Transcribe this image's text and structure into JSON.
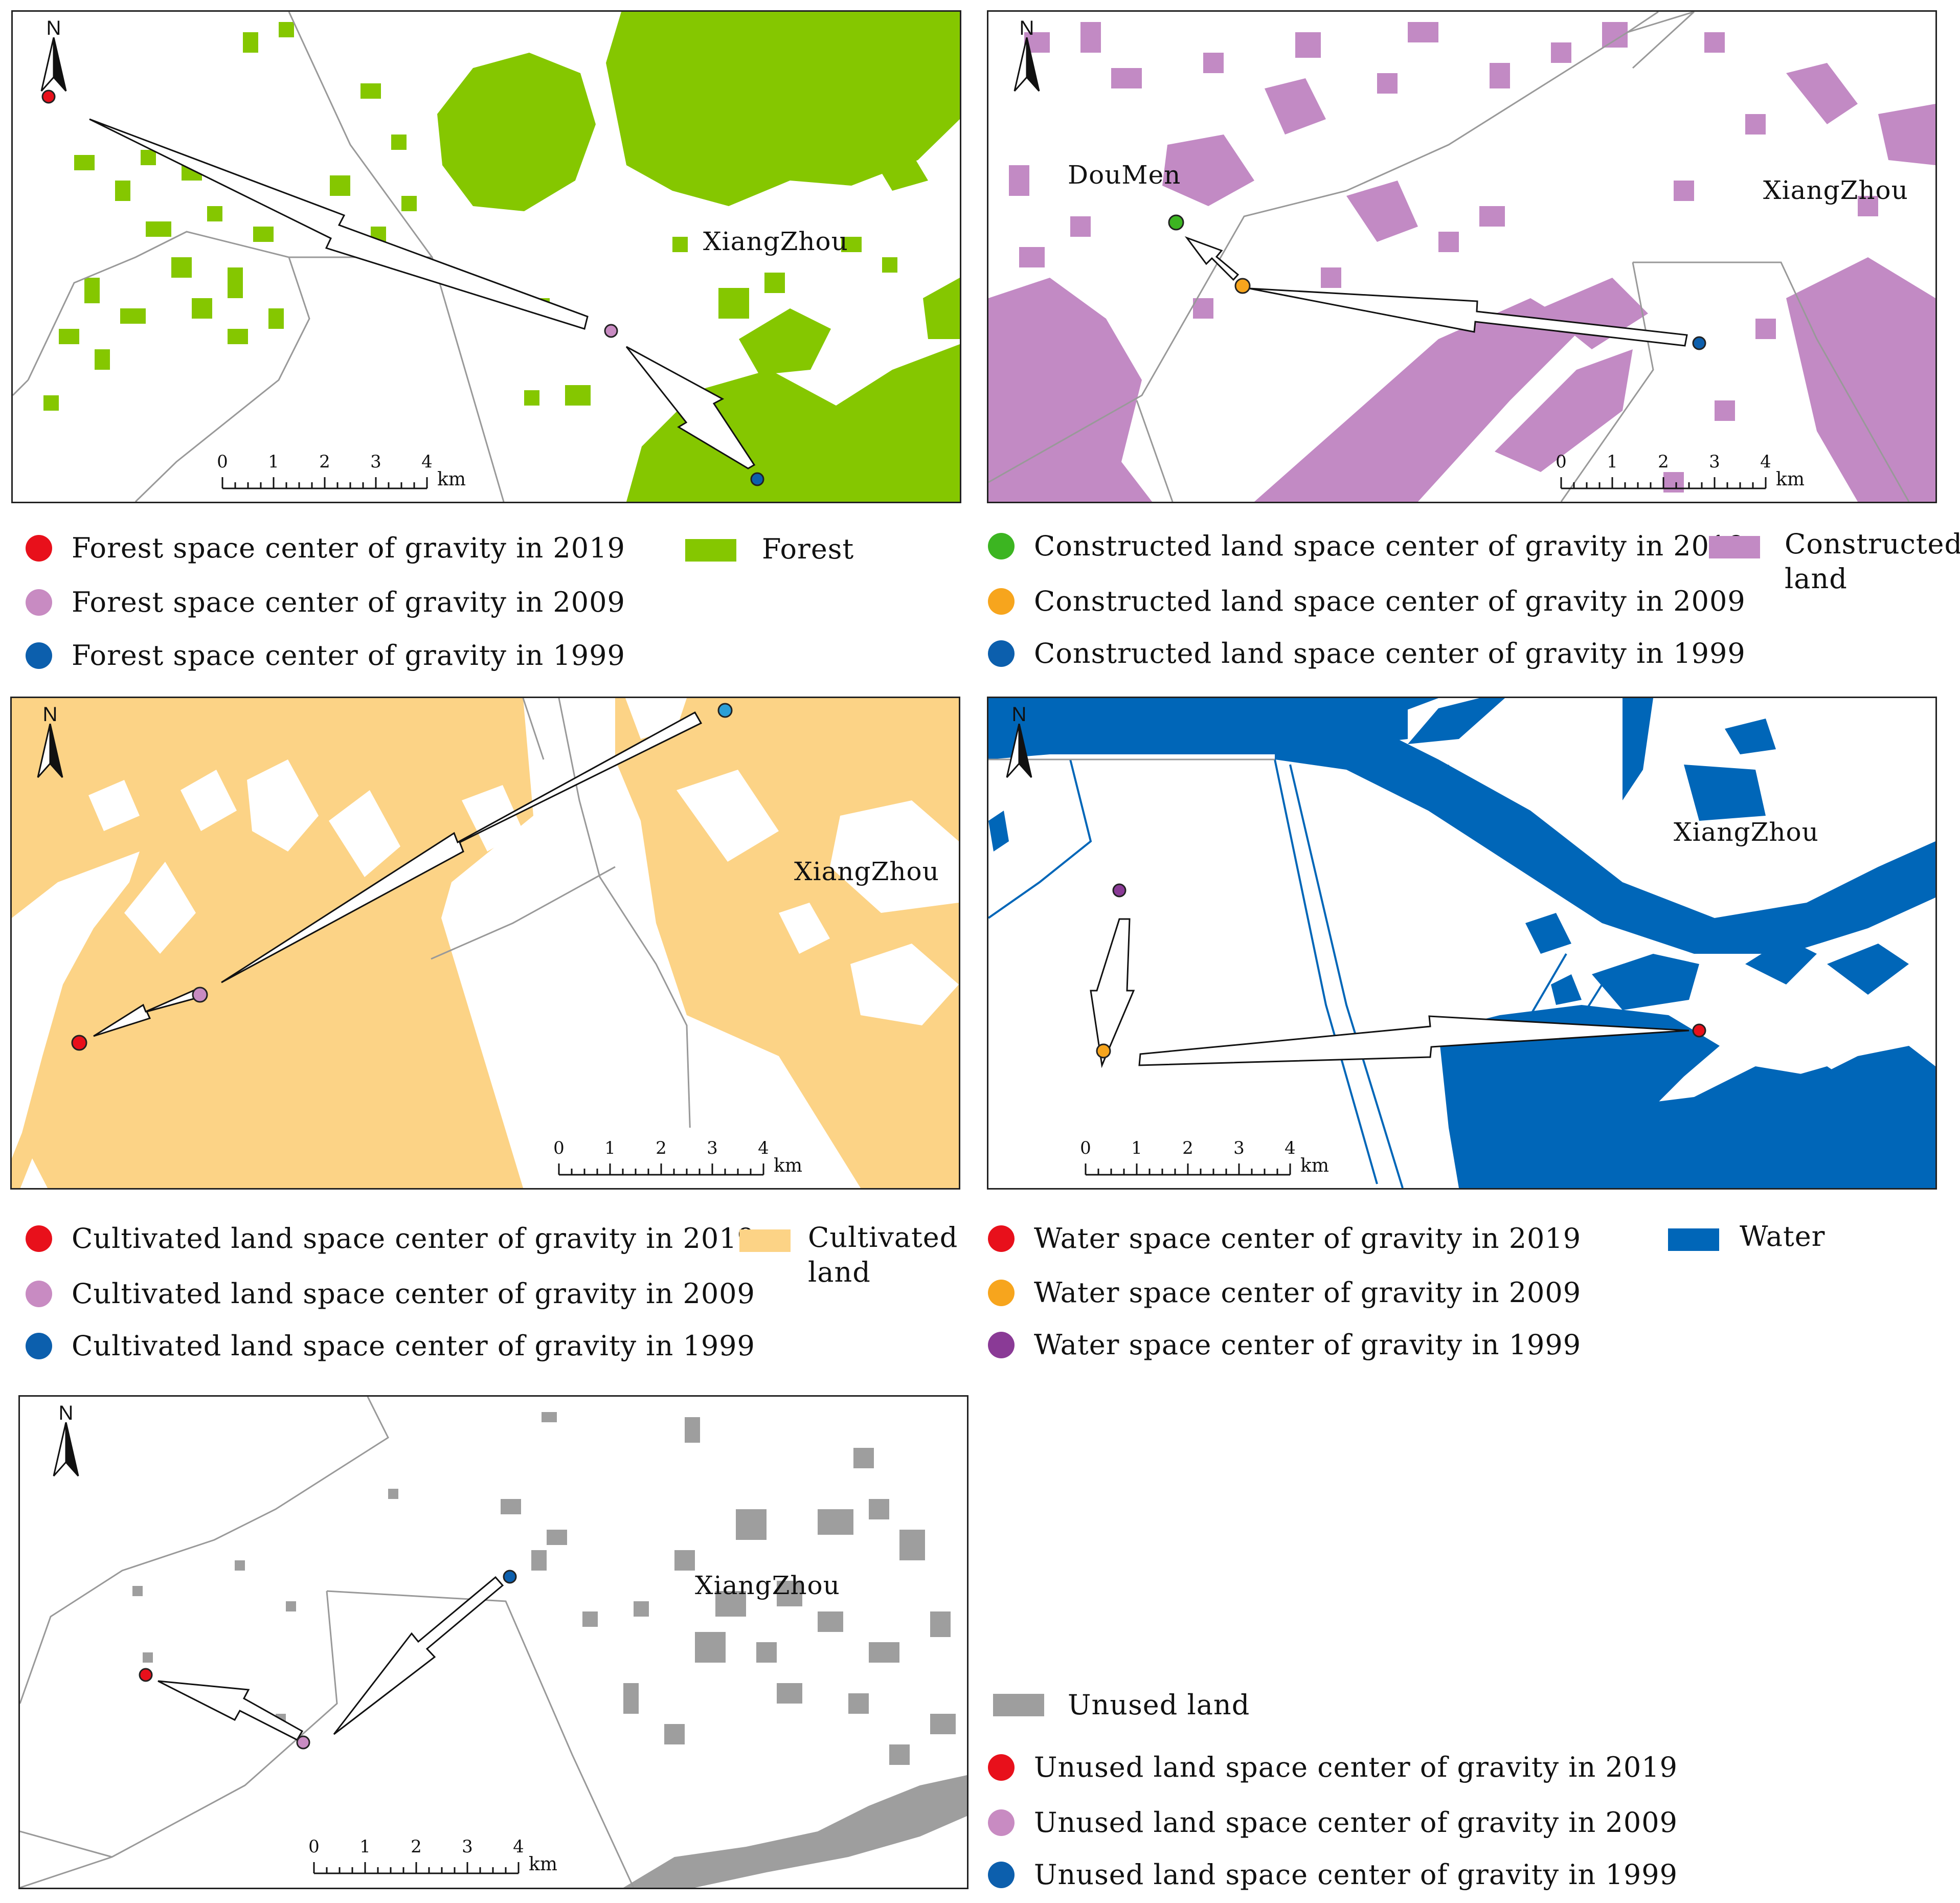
{
  "colors": {
    "forest": "#85c700",
    "constructed": "#c28ac4",
    "cultivated": "#fcd386",
    "water": "#0066b8",
    "unused": "#9e9e9e",
    "red": "#e8101b",
    "pink": "#c88bc2",
    "blue": "#0c5fad",
    "green": "#3cb521",
    "orange": "#f7a51d",
    "purple": "#8a3a96",
    "cyan": "#2a9fd8"
  },
  "map": {
    "north_label": "N",
    "scale_ticks": [
      "0",
      "1",
      "2",
      "3",
      "4"
    ],
    "scale_unit": "km"
  },
  "panels": {
    "forest": {
      "places": [
        "XiangZhou"
      ],
      "legend": [
        {
          "text": "Forest space center of gravity in 2019",
          "color_key": "red"
        },
        {
          "text": "Forest space center of gravity in 2009",
          "color_key": "pink"
        },
        {
          "text": "Forest space center of gravity in 1999",
          "color_key": "blue"
        }
      ],
      "swatch_label": "Forest"
    },
    "constructed": {
      "places": [
        "DouMen",
        "XiangZhou"
      ],
      "legend": [
        {
          "text": "Constructed land space center of gravity in 2019",
          "color_key": "green"
        },
        {
          "text": "Constructed land space center of gravity in 2009",
          "color_key": "orange"
        },
        {
          "text": "Constructed land space center of gravity in 1999",
          "color_key": "blue"
        }
      ],
      "swatch_label": [
        "Constructed",
        "land"
      ]
    },
    "cultivated": {
      "places": [
        "XiangZhou"
      ],
      "legend": [
        {
          "text": "Cultivated land space center of gravity in 2019",
          "color_key": "red"
        },
        {
          "text": "Cultivated land space center of gravity in 2009",
          "color_key": "pink"
        },
        {
          "text": "Cultivated land space center of gravity in 1999",
          "color_key": "blue"
        }
      ],
      "swatch_label": [
        "Cultivated",
        "land"
      ]
    },
    "water": {
      "places": [
        "XiangZhou"
      ],
      "legend": [
        {
          "text": "Water space center of gravity in 2019",
          "color_key": "red"
        },
        {
          "text": "Water space center of gravity in 2009",
          "color_key": "orange"
        },
        {
          "text": "Water space center of gravity in 1999",
          "color_key": "purple"
        }
      ],
      "swatch_label": "Water"
    },
    "unused": {
      "places": [
        "XiangZhou"
      ],
      "legend": [
        {
          "text": "Unused land space center of gravity in 2019",
          "color_key": "red"
        },
        {
          "text": "Unused land space center of gravity in 2009",
          "color_key": "pink"
        },
        {
          "text": "Unused land space center of gravity in 1999",
          "color_key": "blue"
        }
      ],
      "swatch_label": "Unused land"
    }
  }
}
